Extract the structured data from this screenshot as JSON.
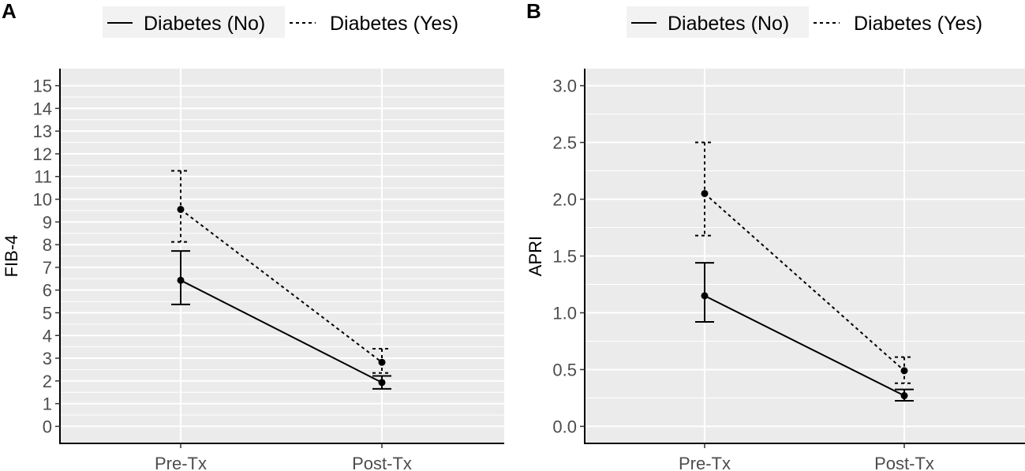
{
  "chart_data": [
    {
      "panel": "A",
      "type": "line",
      "xlabel": "",
      "ylabel": "FIB-4",
      "categories": [
        "Pre-Tx",
        "Post-Tx"
      ],
      "ylim": [
        -0.75,
        15.75
      ],
      "yticks": [
        0,
        1,
        2,
        3,
        4,
        5,
        6,
        7,
        8,
        9,
        10,
        11,
        12,
        13,
        14,
        15
      ],
      "ytick_labels": [
        "0",
        "1",
        "2",
        "3",
        "4",
        "5",
        "6",
        "7",
        "8",
        "9",
        "10",
        "11",
        "12",
        "13",
        "14",
        "15"
      ],
      "grid": true,
      "legend_position": "top",
      "series": [
        {
          "name": "Diabetes (No)",
          "linestyle": "solid",
          "values": [
            6.43,
            1.93
          ],
          "lower": [
            5.37,
            1.65
          ],
          "upper": [
            7.72,
            2.22
          ]
        },
        {
          "name": "Diabetes (Yes)",
          "linestyle": "dashed",
          "values": [
            9.55,
            2.82
          ],
          "lower": [
            8.12,
            2.35
          ],
          "upper": [
            11.25,
            3.42
          ]
        }
      ]
    },
    {
      "panel": "B",
      "type": "line",
      "xlabel": "",
      "ylabel": "APRI",
      "categories": [
        "Pre-Tx",
        "Post-Tx"
      ],
      "ylim": [
        -0.15,
        3.15
      ],
      "yticks": [
        0,
        0.5,
        1,
        1.5,
        2,
        2.5,
        3
      ],
      "ytick_labels": [
        "0.0",
        "0.5",
        "1.0",
        "1.5",
        "2.0",
        "2.5",
        "3.0"
      ],
      "grid": true,
      "legend_position": "top",
      "series": [
        {
          "name": "Diabetes (No)",
          "linestyle": "solid",
          "values": [
            1.15,
            0.27
          ],
          "lower": [
            0.92,
            0.225
          ],
          "upper": [
            1.44,
            0.325
          ]
        },
        {
          "name": "Diabetes (Yes)",
          "linestyle": "dashed",
          "values": [
            2.05,
            0.49
          ],
          "lower": [
            1.68,
            0.38
          ],
          "upper": [
            2.5,
            0.61
          ]
        }
      ]
    }
  ]
}
